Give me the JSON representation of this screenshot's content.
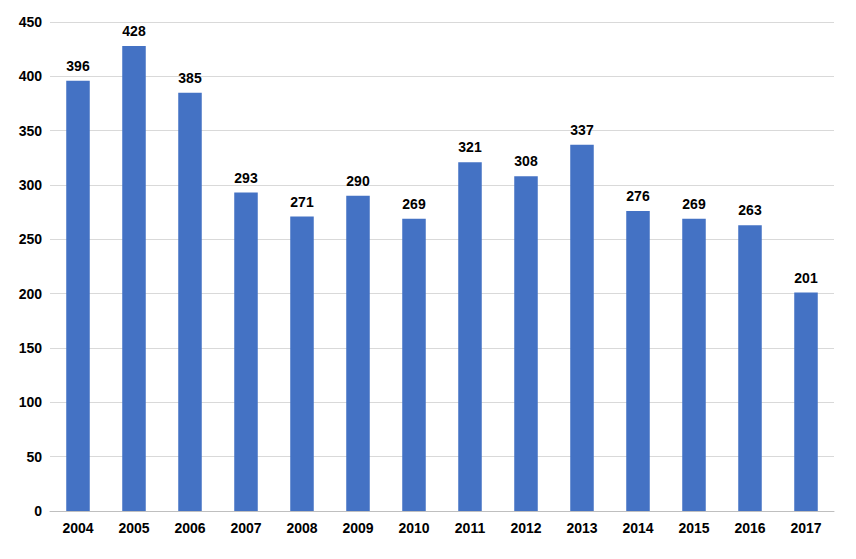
{
  "chart_data": {
    "type": "bar",
    "categories": [
      "2004",
      "2005",
      "2006",
      "2007",
      "2008",
      "2009",
      "2010",
      "2011",
      "2012",
      "2013",
      "2014",
      "2015",
      "2016",
      "2017"
    ],
    "values": [
      396,
      428,
      385,
      293,
      271,
      290,
      269,
      321,
      308,
      337,
      276,
      269,
      263,
      201
    ],
    "color": "#4472c4",
    "ylim": [
      0,
      450
    ],
    "yticks": [
      0,
      50,
      100,
      150,
      200,
      250,
      300,
      350,
      400,
      450
    ],
    "grid": true,
    "data_labels": true
  }
}
